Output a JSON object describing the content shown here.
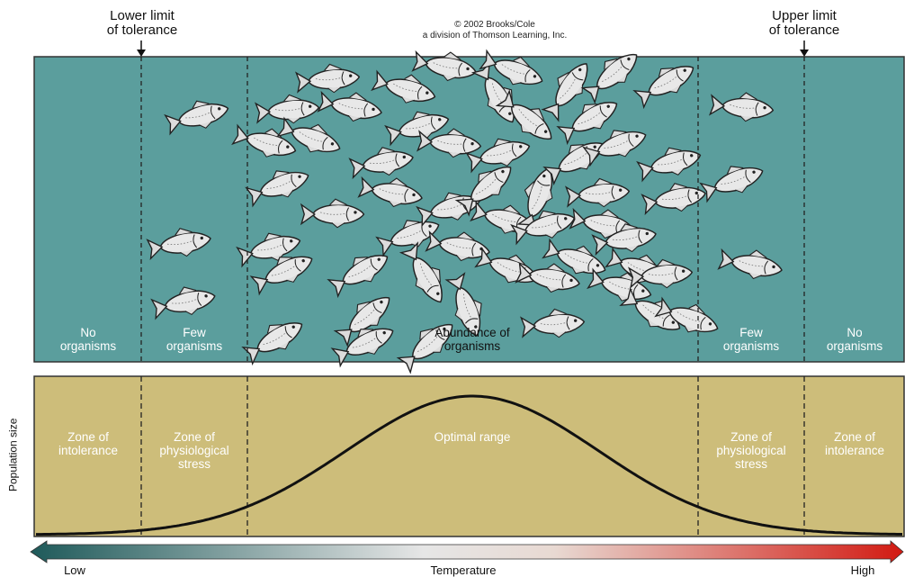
{
  "header": {
    "lower_limit": "Lower limit\nof tolerance",
    "upper_limit": "Upper limit\nof tolerance",
    "copyright": "© 2002 Brooks/Cole\na division of Thomson Learning, Inc."
  },
  "top_panel": {
    "labels": {
      "no_left": "No\norganisms",
      "few_left": "Few\norganisms",
      "abundance": "Abundance of\norganisms",
      "few_right": "Few\norganisms",
      "no_right": "No\norganisms"
    }
  },
  "bottom_panel": {
    "labels": {
      "intol_left": "Zone of\nintolerance",
      "stress_left": "Zone of\nphysiological\nstress",
      "optimal": "Optimal range",
      "stress_right": "Zone of\nphysiological\nstress",
      "intol_right": "Zone of\nintolerance"
    }
  },
  "axis": {
    "y_label": "Population size",
    "x_label": "Temperature",
    "low": "Low",
    "high": "High"
  },
  "colors": {
    "water": "#5b9e9d",
    "sand": "#cdbd7a",
    "gradient_low": "#1e5a5a",
    "gradient_high": "#d21a12"
  }
}
